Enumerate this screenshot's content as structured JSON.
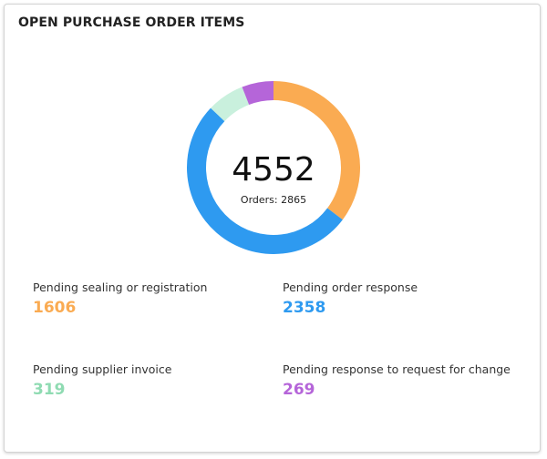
{
  "card": {
    "title": "OPEN PURCHASE ORDER ITEMS"
  },
  "donut": {
    "total": "4552",
    "orders_text": "Orders: 2865"
  },
  "stats": [
    {
      "label": "Pending sealing or registration",
      "value": "1606",
      "color": "#FAAB52"
    },
    {
      "label": "Pending order response",
      "value": "2358",
      "color": "#2E9AF0"
    },
    {
      "label": "Pending supplier invoice",
      "value": "319",
      "color": "#8FDBB2"
    },
    {
      "label": "Pending response to request for change",
      "value": "269",
      "color": "#B565D9"
    }
  ],
  "chart_data": {
    "type": "pie",
    "categories": [
      "Pending sealing or registration",
      "Pending order response",
      "Pending supplier invoice",
      "Pending response to request for change"
    ],
    "values": [
      1606,
      2358,
      319,
      269
    ],
    "colors": [
      "#FAAB52",
      "#2E9AF0",
      "#C9F0DD",
      "#B565D9"
    ],
    "donut": true
  }
}
